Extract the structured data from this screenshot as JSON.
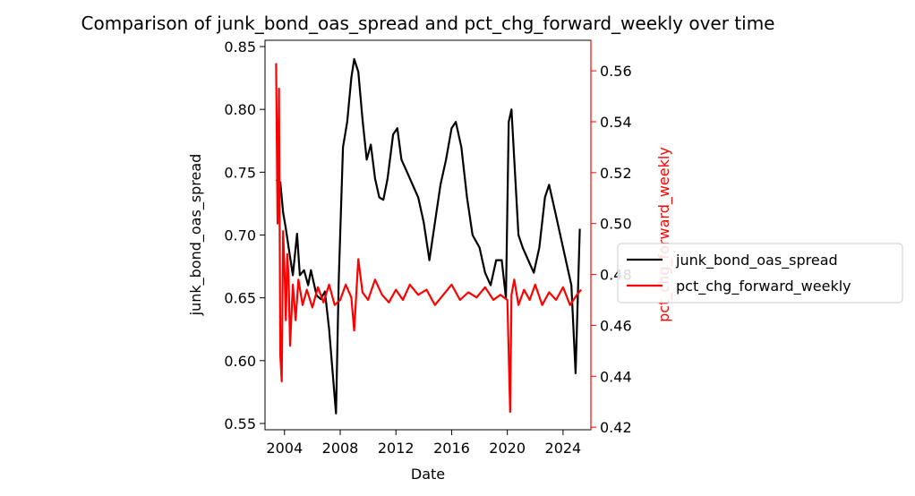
{
  "chart_data": {
    "type": "line",
    "title": "Comparison of junk_bond_oas_spread and pct_chg_forward_weekly over time",
    "xlabel": "Date",
    "ylabel_left": "junk_bond_oas_spread",
    "ylabel_right": "pct_chg_forward_weekly",
    "xlim": [
      2002.6,
      2026.0
    ],
    "ylim_left": [
      0.545,
      0.855
    ],
    "ylim_right": [
      0.419,
      0.572
    ],
    "x_ticks": [
      2004,
      2008,
      2012,
      2016,
      2020,
      2024
    ],
    "y_ticks_left": [
      0.55,
      0.6,
      0.65,
      0.7,
      0.75,
      0.8,
      0.85
    ],
    "y_ticks_right": [
      0.42,
      0.44,
      0.46,
      0.48,
      0.5,
      0.52,
      0.54,
      0.56
    ],
    "grid": false,
    "legend_placement": "center-right outside",
    "colors": {
      "left_axis": "#000000",
      "right_axis": "#ff0000"
    },
    "series": [
      {
        "name": "junk_bond_oas_spread",
        "axis": "left",
        "color": "#000000",
        "x": [
          2003.4,
          2003.7,
          2003.9,
          2004.1,
          2004.3,
          2004.6,
          2004.9,
          2005.1,
          2005.4,
          2005.7,
          2005.9,
          2006.1,
          2006.3,
          2006.6,
          2006.9,
          2007.2,
          2007.5,
          2007.7,
          2007.9,
          2008.2,
          2008.5,
          2008.8,
          2009.0,
          2009.3,
          2009.6,
          2009.9,
          2010.2,
          2010.5,
          2010.8,
          2011.1,
          2011.4,
          2011.8,
          2012.1,
          2012.4,
          2012.8,
          2013.2,
          2013.6,
          2014.0,
          2014.4,
          2014.8,
          2015.2,
          2015.6,
          2016.0,
          2016.3,
          2016.7,
          2017.1,
          2017.5,
          2018.0,
          2018.4,
          2018.8,
          2019.2,
          2019.6,
          2019.9,
          2020.1,
          2020.3,
          2020.5,
          2020.8,
          2021.1,
          2021.5,
          2021.9,
          2022.3,
          2022.7,
          2023.0,
          2023.4,
          2023.8,
          2024.2,
          2024.6,
          2024.9,
          2025.2
        ],
        "y": [
          0.744,
          0.742,
          0.718,
          0.705,
          0.69,
          0.668,
          0.701,
          0.668,
          0.672,
          0.66,
          0.672,
          0.662,
          0.652,
          0.649,
          0.655,
          0.625,
          0.585,
          0.558,
          0.665,
          0.77,
          0.79,
          0.825,
          0.84,
          0.83,
          0.792,
          0.76,
          0.772,
          0.745,
          0.73,
          0.728,
          0.745,
          0.78,
          0.785,
          0.76,
          0.75,
          0.74,
          0.73,
          0.71,
          0.68,
          0.71,
          0.74,
          0.76,
          0.785,
          0.79,
          0.77,
          0.73,
          0.7,
          0.69,
          0.67,
          0.66,
          0.68,
          0.68,
          0.65,
          0.79,
          0.8,
          0.76,
          0.7,
          0.69,
          0.68,
          0.67,
          0.69,
          0.73,
          0.74,
          0.72,
          0.7,
          0.68,
          0.66,
          0.59,
          0.705
        ]
      },
      {
        "name": "pct_chg_forward_weekly",
        "axis": "right",
        "color": "#ff0000",
        "x": [
          2003.4,
          2003.5,
          2003.6,
          2003.7,
          2003.8,
          2003.9,
          2004.0,
          2004.1,
          2004.2,
          2004.3,
          2004.4,
          2004.6,
          2004.8,
          2005.0,
          2005.3,
          2005.6,
          2006.0,
          2006.4,
          2006.8,
          2007.2,
          2007.6,
          2008.0,
          2008.4,
          2008.8,
          2009.0,
          2009.3,
          2009.6,
          2010.0,
          2010.5,
          2011.0,
          2011.5,
          2012.0,
          2012.5,
          2013.0,
          2013.6,
          2014.2,
          2014.8,
          2015.4,
          2016.0,
          2016.6,
          2017.2,
          2017.8,
          2018.4,
          2019.0,
          2019.5,
          2020.0,
          2020.2,
          2020.3,
          2020.5,
          2020.8,
          2021.2,
          2021.6,
          2022.0,
          2022.5,
          2023.0,
          2023.5,
          2024.0,
          2024.5,
          2025.0,
          2025.3
        ],
        "y": [
          0.563,
          0.5,
          0.553,
          0.448,
          0.438,
          0.497,
          0.482,
          0.462,
          0.488,
          0.478,
          0.452,
          0.476,
          0.462,
          0.478,
          0.468,
          0.474,
          0.467,
          0.475,
          0.469,
          0.476,
          0.468,
          0.47,
          0.476,
          0.471,
          0.458,
          0.486,
          0.473,
          0.47,
          0.478,
          0.472,
          0.469,
          0.474,
          0.47,
          0.476,
          0.472,
          0.474,
          0.468,
          0.472,
          0.476,
          0.47,
          0.473,
          0.471,
          0.475,
          0.47,
          0.472,
          0.47,
          0.426,
          0.472,
          0.478,
          0.468,
          0.474,
          0.47,
          0.476,
          0.468,
          0.473,
          0.47,
          0.475,
          0.468,
          0.472,
          0.474
        ]
      }
    ]
  }
}
